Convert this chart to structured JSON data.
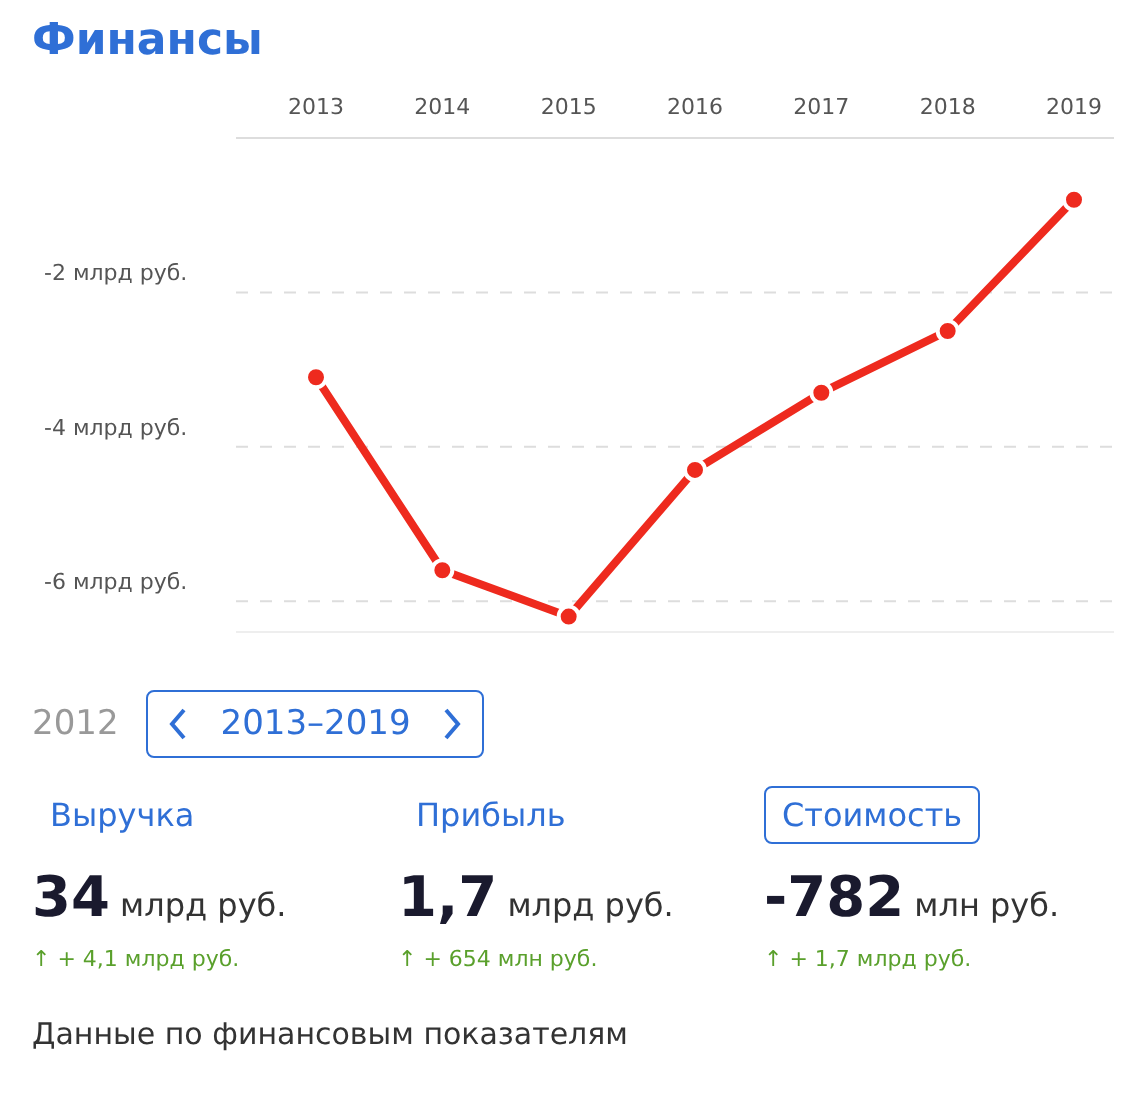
{
  "chart_data": [
    {
      "type": "line",
      "title": "Финансы",
      "categories": [
        "2013",
        "2014",
        "2015",
        "2016",
        "2017",
        "2018",
        "2019"
      ],
      "values": [
        -3.1,
        -5.6,
        -6.2,
        -4.3,
        -3.3,
        -2.5,
        -0.8
      ],
      "color": "#ee2a1e",
      "ylim": [
        -6.4,
        0
      ],
      "yticks": [
        {
          "value": -6,
          "label": "-6 млрд руб."
        },
        {
          "value": -4,
          "label": "-4 млрд руб."
        },
        {
          "value": -2,
          "label": "-2 млрд руб."
        }
      ],
      "grid": "y",
      "marker": "circle",
      "line_style": "solid"
    },
    {
      "type": "other",
      "annotations": [
        "2012",
        "2013–2019",
        "Выручка",
        "34 млрд руб.",
        "↑ + 4,1 млрд руб.",
        "Прибыль",
        "1,7 млрд руб.",
        "↑ + 654 млн руб.",
        "Стоимость",
        "-782 млн руб.",
        "↑ + 1,7 млрд руб.",
        "Данные по финансовым показателям"
      ]
    }
  ]
}
